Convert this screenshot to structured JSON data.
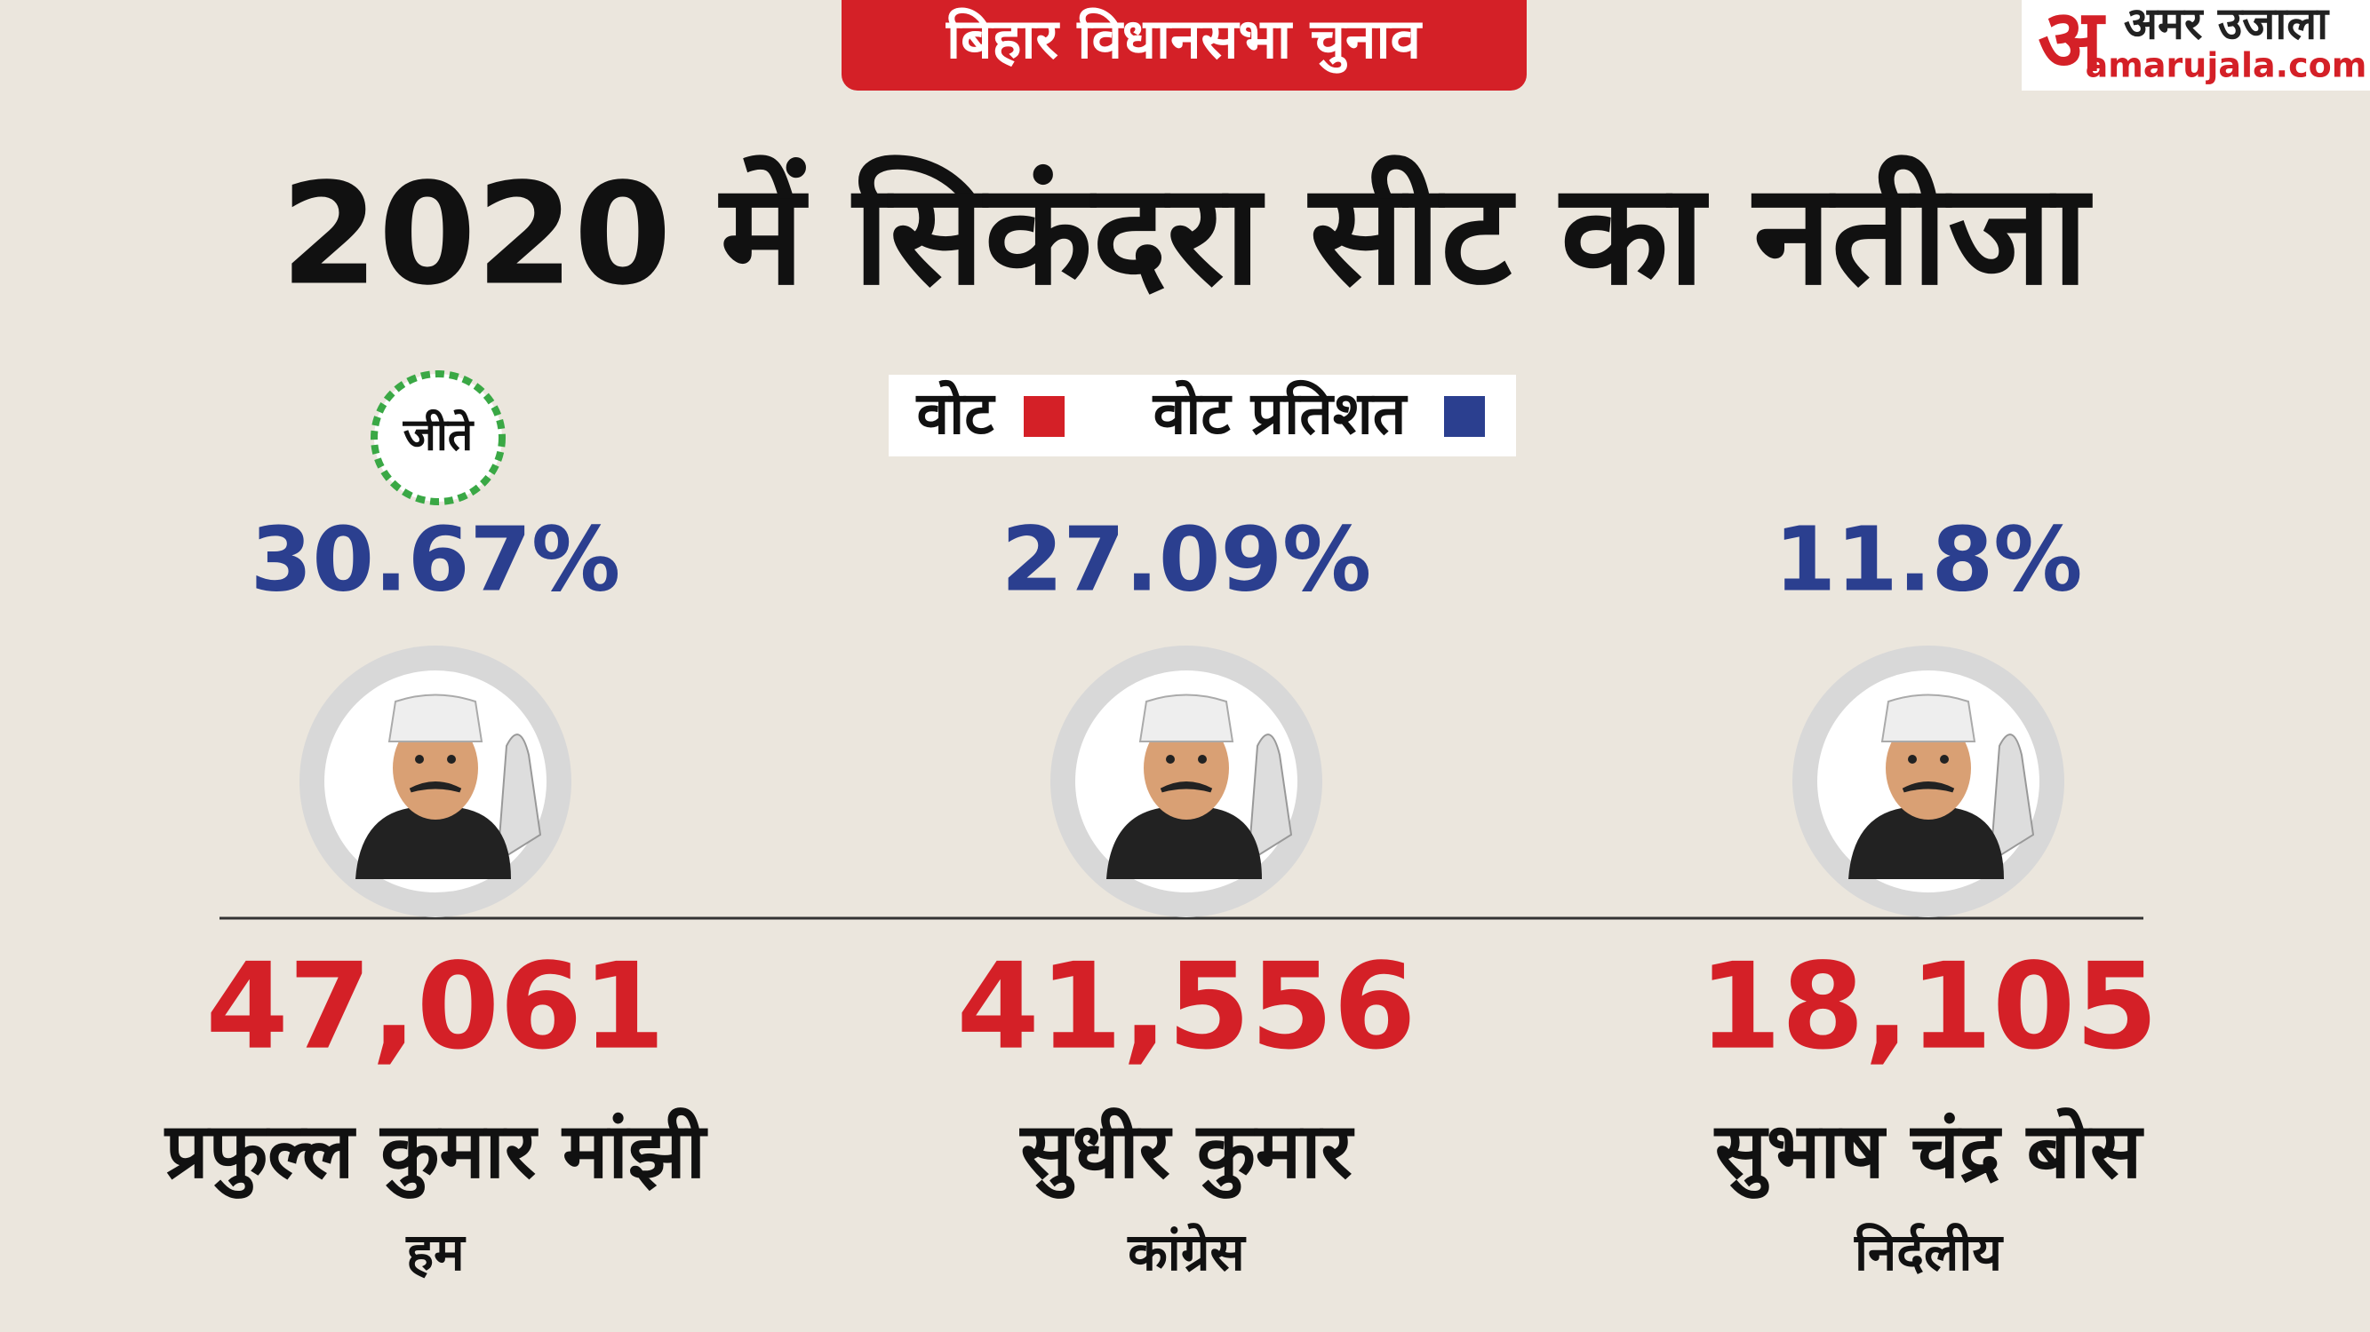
{
  "header": {
    "tag": "बिहार विधानसभा चुनाव",
    "logo_mark": "अ",
    "logo_name": "अमर उजाला",
    "logo_site": "amarujala.com",
    "title": "2020 में सिकंदरा सीट का नतीजा"
  },
  "legend": {
    "votes": "वोट",
    "vote_share": "वोट प्रतिशत"
  },
  "winner_badge": "जीते",
  "candidates": [
    {
      "vote_share": "30.67%",
      "votes": "47,061",
      "name": "प्रफुल्ल कुमार मांझी",
      "party": "हम"
    },
    {
      "vote_share": "27.09%",
      "votes": "41,556",
      "name": "सुधीर कुमार",
      "party": "कांग्रेस"
    },
    {
      "vote_share": "11.8%",
      "votes": "18,105",
      "name": "सुभाष चंद्र बोस",
      "party": "निर्दलीय"
    }
  ]
}
